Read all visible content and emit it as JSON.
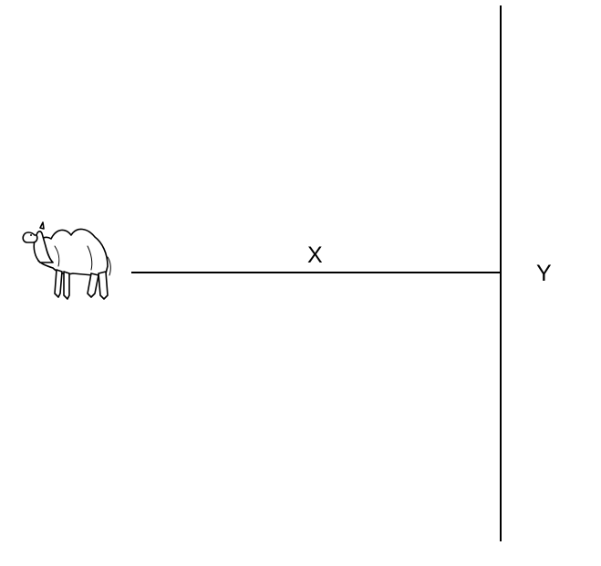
{
  "labels": {
    "x": "X",
    "y": "Y"
  },
  "icons": {
    "animal": "camel-icon"
  },
  "colors": {
    "line": "#000000",
    "background": "#ffffff"
  }
}
